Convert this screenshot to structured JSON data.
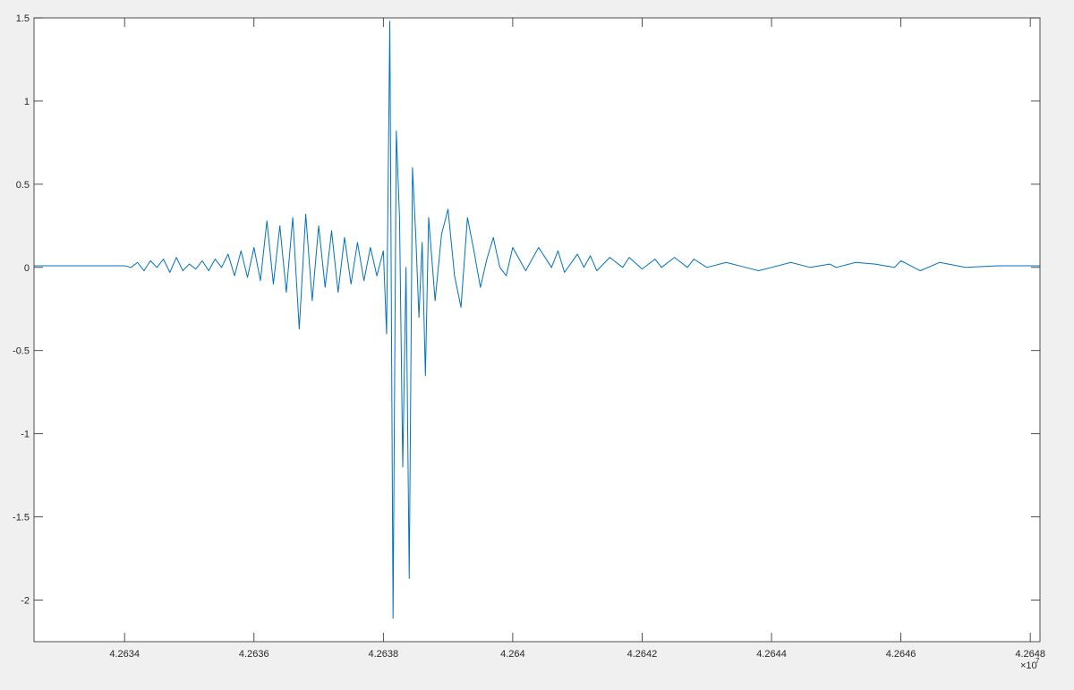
{
  "chart_data": {
    "type": "line",
    "title": "",
    "xlabel": "",
    "ylabel": "",
    "x_exponent_label": "×10",
    "x_exponent_power": "7",
    "xlim": [
      42632.6,
      42648.15
    ],
    "ylim": [
      -2.25,
      1.5
    ],
    "xticks": [
      42634,
      42636,
      42638,
      42640,
      42642,
      42644,
      42646,
      42648
    ],
    "xtick_labels": [
      "4.2634",
      "4.2636",
      "4.2638",
      "4.264",
      "4.2642",
      "4.2644",
      "4.2646",
      "4.2648"
    ],
    "yticks": [
      -2,
      -1.5,
      -1,
      -0.5,
      0,
      0.5,
      1,
      1.5
    ],
    "ytick_labels": [
      "-2",
      "-1.5",
      "-1",
      "-0.5",
      "0",
      "0.5",
      "1",
      "1.5"
    ],
    "grid": false,
    "line_color": "#0072BD",
    "background_color": "#ffffff",
    "figure_color": "#f0f0f0",
    "series": [
      {
        "x": [
          42632.6,
          42633.0,
          42633.5,
          42634.0,
          42634.1,
          42634.2,
          42634.3,
          42634.4,
          42634.5,
          42634.6,
          42634.7,
          42634.8,
          42634.9,
          42635.0,
          42635.1,
          42635.2,
          42635.3,
          42635.4,
          42635.5,
          42635.6,
          42635.7,
          42635.8,
          42635.9,
          42636.0,
          42636.1,
          42636.2,
          42636.3,
          42636.4,
          42636.5,
          42636.6,
          42636.7,
          42636.8,
          42636.9,
          42637.0,
          42637.1,
          42637.2,
          42637.3,
          42637.4,
          42637.5,
          42637.6,
          42637.7,
          42637.8,
          42637.9,
          42638.0,
          42638.05,
          42638.1,
          42638.15,
          42638.2,
          42638.25,
          42638.3,
          42638.35,
          42638.4,
          42638.45,
          42638.5,
          42638.55,
          42638.6,
          42638.65,
          42638.7,
          42638.8,
          42638.9,
          42639.0,
          42639.1,
          42639.2,
          42639.3,
          42639.4,
          42639.5,
          42639.6,
          42639.7,
          42639.8,
          42639.9,
          42640.0,
          42640.2,
          42640.3,
          42640.4,
          42640.6,
          42640.7,
          42640.8,
          42641.0,
          42641.1,
          42641.2,
          42641.3,
          42641.5,
          42641.7,
          42641.8,
          42642.0,
          42642.2,
          42642.3,
          42642.5,
          42642.7,
          42642.8,
          42643.0,
          42643.3,
          42643.6,
          42643.8,
          42644.0,
          42644.3,
          42644.6,
          42644.9,
          42645.0,
          42645.3,
          42645.6,
          42645.9,
          42646.0,
          42646.3,
          42646.6,
          42647.0,
          42647.5,
          42648.15
        ],
        "y": [
          0.01,
          0.01,
          0.01,
          0.01,
          0.0,
          0.03,
          -0.02,
          0.04,
          0.0,
          0.05,
          -0.03,
          0.06,
          -0.02,
          0.02,
          -0.01,
          0.04,
          -0.02,
          0.05,
          0.0,
          0.08,
          -0.05,
          0.1,
          -0.06,
          0.12,
          -0.08,
          0.28,
          -0.1,
          0.25,
          -0.15,
          0.3,
          -0.37,
          0.32,
          -0.2,
          0.25,
          -0.12,
          0.22,
          -0.15,
          0.18,
          -0.1,
          0.15,
          -0.08,
          0.12,
          -0.05,
          0.1,
          -0.4,
          1.48,
          -2.11,
          0.82,
          0.3,
          -1.2,
          0.0,
          -1.87,
          0.6,
          0.2,
          -0.3,
          0.15,
          -0.65,
          0.3,
          -0.2,
          0.2,
          0.35,
          -0.05,
          -0.24,
          0.3,
          0.1,
          -0.12,
          0.05,
          0.18,
          0.0,
          -0.05,
          0.12,
          -0.02,
          0.05,
          0.12,
          0.0,
          0.1,
          -0.03,
          0.08,
          0.0,
          0.07,
          -0.02,
          0.06,
          0.0,
          0.06,
          -0.01,
          0.05,
          0.0,
          0.06,
          0.0,
          0.05,
          0.0,
          0.03,
          0.0,
          -0.02,
          0.0,
          0.03,
          0.0,
          0.02,
          0.0,
          0.03,
          0.02,
          0.0,
          0.04,
          -0.02,
          0.03,
          0.0,
          0.01,
          0.01
        ]
      }
    ]
  }
}
